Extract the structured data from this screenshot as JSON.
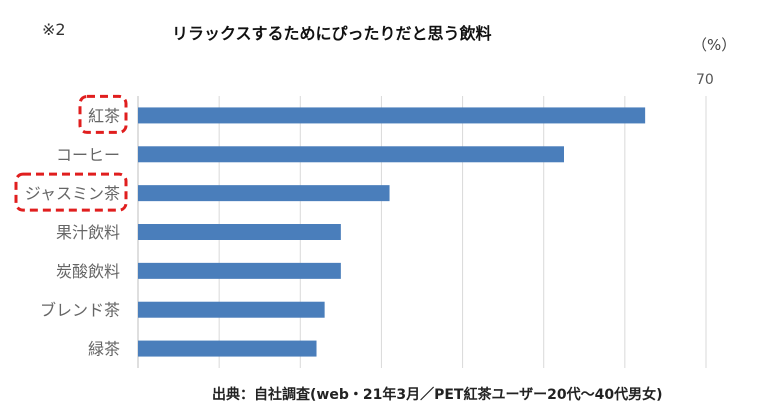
{
  "note": "※2",
  "source": "出典：自社調査(web・21年3月／PET紅茶ユーザー20代～40代男女)",
  "chart_data": {
    "type": "bar",
    "orientation": "horizontal",
    "title": "リラックスするためにぴったりだと思う飲料",
    "unit_label": "（%）",
    "xlim": [
      0,
      70
    ],
    "tick_label": "70",
    "categories": [
      "紅茶",
      "コーヒー",
      "ジャスミン茶",
      "果汁飲料",
      "炭酸飲料",
      "ブレンド茶",
      "緑茶"
    ],
    "values": [
      62.5,
      52.5,
      31,
      25,
      25,
      23,
      22
    ],
    "highlighted": [
      "紅茶",
      "ジャスミン茶"
    ],
    "grid": true
  },
  "colors": {
    "bar": "#4a7ebb",
    "highlight": "#e01e1e",
    "grid": "#d9d9d9",
    "axis": "#bfbfbf",
    "label": "#666666"
  }
}
